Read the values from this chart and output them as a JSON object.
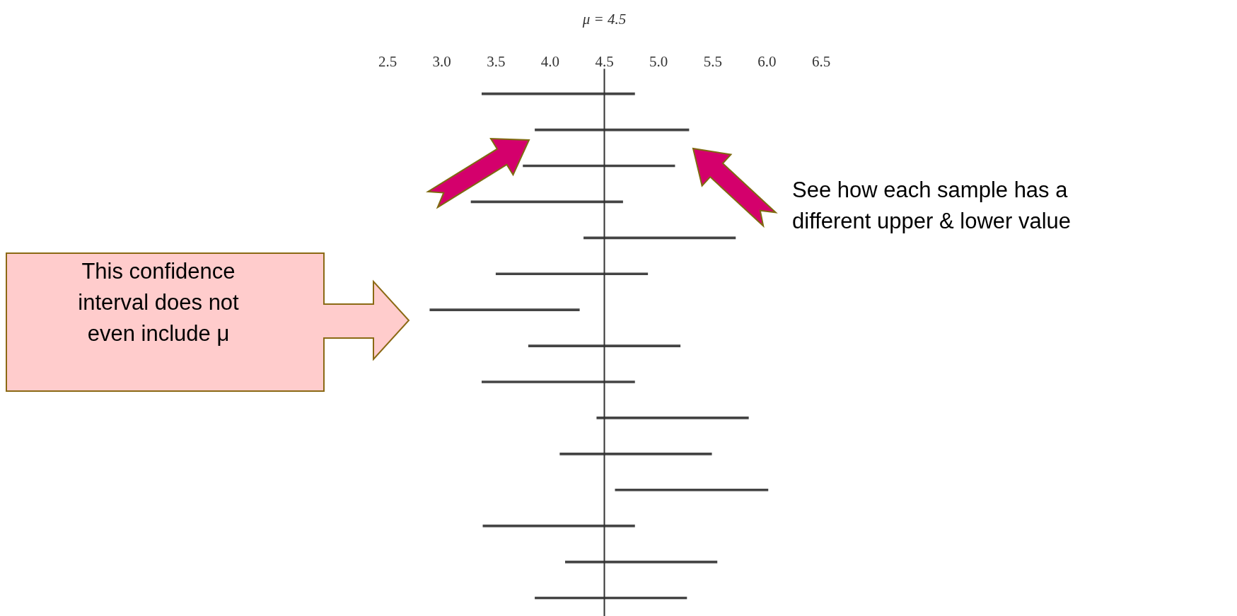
{
  "chart_data": {
    "type": "bar",
    "orientation": "horizontal",
    "tick_labels": "x",
    "categories": [
      null,
      null,
      null,
      null,
      null,
      null,
      null,
      null,
      null,
      null,
      null,
      null,
      null,
      null,
      null
    ],
    "base": [
      3.37,
      3.86,
      3.75,
      3.27,
      4.31,
      3.5,
      2.89,
      3.8,
      3.37,
      4.43,
      4.09,
      4.6,
      3.38,
      4.14,
      3.86
    ],
    "values": [
      1.41,
      1.42,
      1.4,
      1.4,
      1.4,
      1.4,
      1.38,
      1.4,
      1.41,
      1.4,
      1.4,
      1.41,
      1.4,
      1.4,
      1.4
    ],
    "color": "#444444",
    "xlim": [
      2.5,
      6.5
    ],
    "xticks": [
      2.5,
      {
        "value": 3,
        "label": "3.0"
      },
      3.5,
      {
        "value": 4,
        "label": "4.0"
      },
      4.5,
      {
        "value": 5,
        "label": "5.0"
      },
      5.5,
      {
        "value": 6,
        "label": "6.0"
      },
      6.5
    ],
    "ref_lines": [
      {
        "axis": "x",
        "value": 4.5,
        "label": "μ = 4.5",
        "color": "#333333"
      }
    ],
    "annotations": [
      "This confidence interval does not even include μ",
      "See how each sample has a different upper & lower value"
    ]
  }
}
